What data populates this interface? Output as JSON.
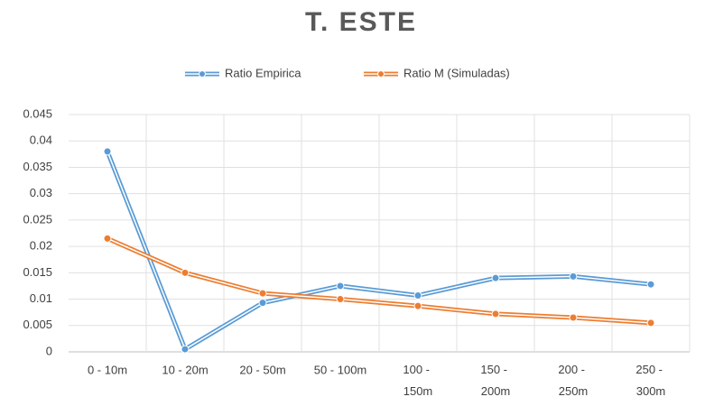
{
  "chart_data": {
    "type": "line",
    "title": "T. ESTE",
    "categories": [
      "0 - 10m",
      "10 - 20m",
      "20 - 50m",
      "50 - 100m",
      "100 - 150m",
      "150 - 200m",
      "200 - 250m",
      "250 - 300m"
    ],
    "series": [
      {
        "name": "Ratio Empirica",
        "color": "#5b9bd5",
        "values": [
          0.038,
          0.0005,
          0.0093,
          0.0125,
          0.0107,
          0.014,
          0.0143,
          0.0128
        ]
      },
      {
        "name": "Ratio M (Simuladas)",
        "color": "#ed7d31",
        "values": [
          0.0215,
          0.015,
          0.0111,
          0.01,
          0.0087,
          0.0072,
          0.0065,
          0.0055
        ]
      }
    ],
    "ylim": [
      0,
      0.045
    ],
    "yticks": [
      0,
      0.005,
      0.01,
      0.015,
      0.02,
      0.025,
      0.03,
      0.035,
      0.04,
      0.045
    ],
    "grid": true,
    "legend": "top"
  }
}
